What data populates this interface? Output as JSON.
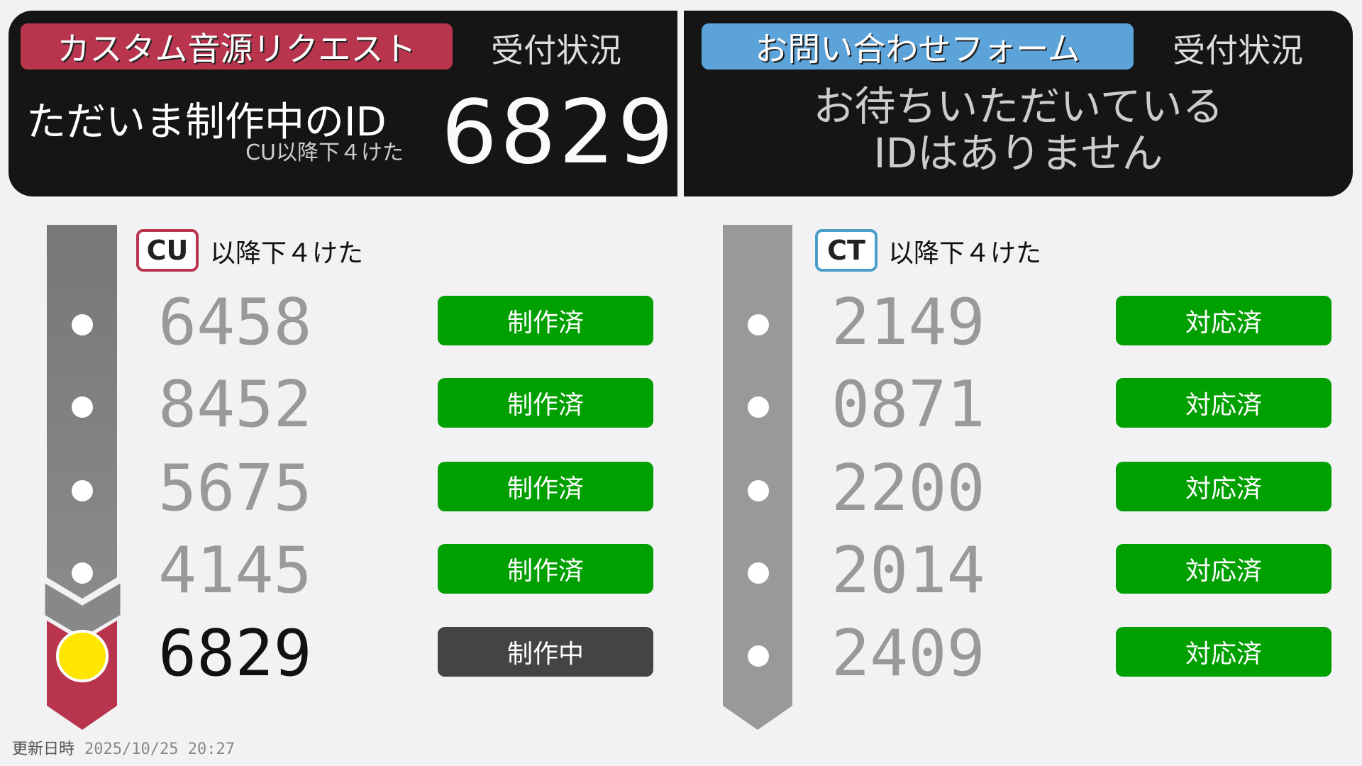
{
  "left": {
    "title": "カスタム音源リクエスト",
    "status_label": "受付状況",
    "current_label": "ただいま制作中のID",
    "current_sub": "CU以降下４けた",
    "current_id": "6829",
    "badge": "CU",
    "badge_label": "以降下４けた",
    "items": [
      {
        "id": "6458",
        "status": "制作済"
      },
      {
        "id": "8452",
        "status": "制作済"
      },
      {
        "id": "5675",
        "status": "制作済"
      },
      {
        "id": "4145",
        "status": "制作済"
      },
      {
        "id": "6829",
        "status": "制作中",
        "active": true
      }
    ],
    "accent": "#b8354d"
  },
  "right": {
    "title": "お問い合わせフォーム",
    "status_label": "受付状況",
    "message_line1": "お待ちいただいている",
    "message_line2": "IDはありません",
    "badge": "CT",
    "badge_label": "以降下４けた",
    "items": [
      {
        "id": "2149",
        "status": "対応済"
      },
      {
        "id": "0871",
        "status": "対応済"
      },
      {
        "id": "2200",
        "status": "対応済"
      },
      {
        "id": "2014",
        "status": "対応済"
      },
      {
        "id": "2409",
        "status": "対応済"
      }
    ],
    "accent": "#5ba3d9"
  },
  "footer": {
    "label": "更新日時",
    "timestamp": "2025/10/25 20:27"
  },
  "colors": {
    "done": "#00a000",
    "in_progress": "#444444",
    "current_marker": "#ffe600"
  }
}
